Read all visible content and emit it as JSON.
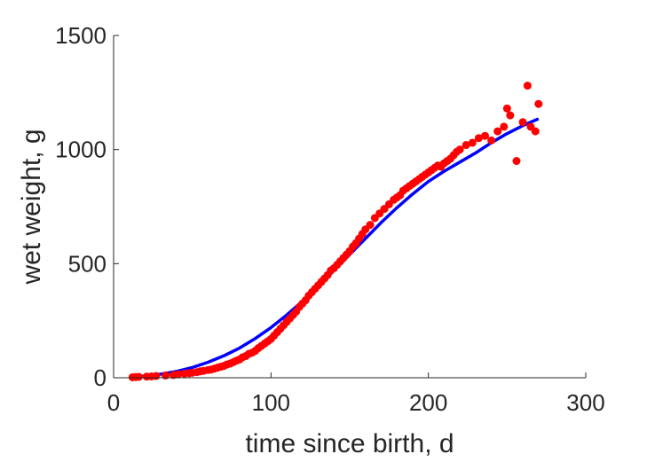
{
  "chart_data": {
    "type": "scatter",
    "xlabel": "time since birth, d",
    "ylabel": "wet weight, g",
    "xlim": [
      0,
      300
    ],
    "ylim": [
      0,
      1500
    ],
    "xticks": [
      0,
      100,
      200,
      300
    ],
    "yticks": [
      0,
      500,
      1000,
      1500
    ],
    "xtick_labels": [
      "0",
      "100",
      "200",
      "300"
    ],
    "ytick_labels": [
      "0",
      "500",
      "1000",
      "1500"
    ],
    "grid": false,
    "colors": {
      "points": "#ff0000",
      "fit": "#0000ff",
      "axes": "#262626"
    },
    "series": [
      {
        "kind": "scatter",
        "x": [
          12,
          14,
          16,
          21,
          24,
          27,
          33,
          38,
          41,
          45,
          48,
          50,
          53,
          55,
          57,
          60,
          62,
          64,
          66,
          68,
          70,
          72,
          74,
          76,
          78,
          80,
          82,
          84,
          86,
          88,
          90,
          92,
          94,
          96,
          98,
          100,
          102,
          104,
          106,
          108,
          110,
          112,
          114,
          116,
          118,
          120,
          122,
          124,
          126,
          128,
          130,
          132,
          134,
          136,
          138,
          140,
          142,
          144,
          146,
          148,
          150,
          152,
          154,
          156,
          158,
          160,
          163,
          166,
          169,
          172,
          175,
          178,
          180,
          182,
          184,
          186,
          188,
          190,
          192,
          194,
          196,
          198,
          200,
          202,
          204,
          206,
          208,
          210,
          212,
          214,
          216,
          218,
          220,
          224,
          228,
          232,
          236,
          240,
          244,
          248,
          250,
          252,
          256,
          260,
          263,
          265,
          268,
          270
        ],
        "y": [
          2,
          3,
          4,
          5,
          6,
          8,
          10,
          12,
          15,
          18,
          20,
          22,
          25,
          28,
          30,
          34,
          36,
          40,
          44,
          48,
          52,
          58,
          62,
          68,
          75,
          80,
          90,
          95,
          105,
          110,
          118,
          130,
          140,
          150,
          160,
          170,
          185,
          200,
          215,
          230,
          245,
          260,
          275,
          290,
          310,
          325,
          340,
          360,
          375,
          390,
          405,
          420,
          435,
          450,
          470,
          480,
          495,
          510,
          525,
          540,
          555,
          575,
          590,
          610,
          630,
          650,
          670,
          700,
          720,
          740,
          760,
          780,
          790,
          800,
          820,
          830,
          840,
          850,
          860,
          870,
          880,
          890,
          900,
          910,
          920,
          930,
          925,
          940,
          950,
          960,
          975,
          990,
          1000,
          1020,
          1030,
          1050,
          1060,
          1040,
          1080,
          1100,
          1180,
          1150,
          950,
          1120,
          1280,
          1100,
          1080,
          1200
        ]
      },
      {
        "kind": "line",
        "x": [
          10,
          20,
          30,
          40,
          50,
          60,
          70,
          80,
          90,
          100,
          110,
          120,
          130,
          140,
          150,
          160,
          170,
          180,
          190,
          200,
          210,
          220,
          230,
          240,
          250,
          260,
          270
        ],
        "y": [
          3,
          8,
          16,
          28,
          45,
          68,
          96,
          130,
          172,
          220,
          275,
          335,
          400,
          470,
          540,
          610,
          680,
          745,
          805,
          860,
          905,
          945,
          985,
          1030,
          1070,
          1105,
          1135
        ]
      }
    ]
  }
}
